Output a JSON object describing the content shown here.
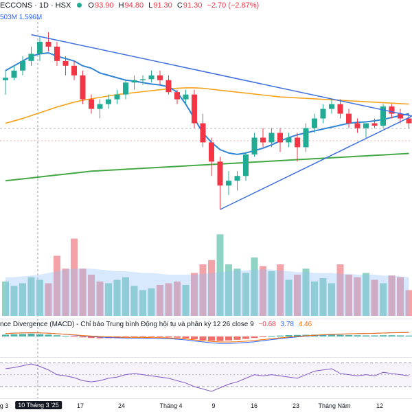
{
  "header": {
    "symbol": "ECCONS · 1D · HSX",
    "open_label": "O",
    "open": "93.90",
    "high_label": "H",
    "high": "94.80",
    "low_label": "L",
    "low": "91.30",
    "close_label": "C",
    "close": "91.30",
    "change": "−2.70 (−2.87%)"
  },
  "volume_header": {
    "v1": "503M",
    "v2": "1.596M"
  },
  "macd_header": {
    "title": "nce Divergence (MACD) - Chỉ báo Trung bình Động hội tụ và phân kỳ 12 26 close 9",
    "v1": "−0.68",
    "v2": "3.78",
    "v3": "4.46"
  },
  "x_axis": {
    "labels": [
      "g 3",
      "10 Tháng 3 '25",
      "17",
      "24",
      "Tháng 4",
      "9",
      "16",
      "23",
      "Tháng Năm",
      "12"
    ],
    "highlight": "10 Tháng 3 '25"
  },
  "colors": {
    "up": "#22ab94",
    "down": "#f23645",
    "ma_blue": "#2f84d6",
    "ma_orange": "#f7a21b",
    "ma_green": "#43a843",
    "trend": "#3d6fe0",
    "vol_up": "#8fd3c4",
    "vol_down": "#f3a2a8",
    "rsi": "#7e57c2"
  },
  "chart_data": {
    "type": "candlestick",
    "ohlc": [
      [
        94,
        96,
        91,
        94.5
      ],
      [
        94.5,
        97,
        94,
        96
      ],
      [
        96,
        99,
        95,
        98
      ],
      [
        98,
        101,
        97,
        99.5
      ],
      [
        99.5,
        103,
        98,
        102
      ],
      [
        102,
        104,
        100,
        101
      ],
      [
        101,
        102,
        97,
        98
      ],
      [
        98,
        99,
        95,
        97
      ],
      [
        97,
        98,
        94,
        95
      ],
      [
        95,
        96,
        89,
        90
      ],
      [
        90,
        91,
        87,
        88
      ],
      [
        88,
        90,
        86,
        89
      ],
      [
        89,
        91,
        88,
        90
      ],
      [
        90,
        92,
        89,
        91
      ],
      [
        91,
        94,
        90,
        93.5
      ],
      [
        93.5,
        95,
        92,
        94
      ],
      [
        94,
        95,
        93,
        94.2
      ],
      [
        94.2,
        96,
        93.5,
        95
      ],
      [
        95,
        96,
        93,
        94
      ],
      [
        94,
        95,
        91,
        91.5
      ],
      [
        91.5,
        92,
        89,
        90
      ],
      [
        90,
        92,
        89,
        91
      ],
      [
        91,
        92,
        84,
        85
      ],
      [
        85,
        87,
        80,
        81
      ],
      [
        81,
        82,
        74,
        77
      ],
      [
        77,
        78,
        67,
        72
      ],
      [
        72,
        75,
        70,
        73
      ],
      [
        73,
        75,
        71,
        74
      ],
      [
        74,
        79,
        73,
        78.5
      ],
      [
        78.5,
        83,
        78,
        82
      ],
      [
        82,
        84,
        80,
        81
      ],
      [
        81,
        84,
        80,
        83
      ],
      [
        83,
        84,
        79,
        81
      ],
      [
        81,
        83,
        80,
        82
      ],
      [
        82,
        83,
        77,
        80
      ],
      [
        80,
        85,
        79,
        84
      ],
      [
        84,
        87,
        83,
        86
      ],
      [
        86,
        89,
        85,
        88
      ],
      [
        88,
        90,
        87,
        89
      ],
      [
        89,
        90,
        86,
        87
      ],
      [
        87,
        88,
        84,
        85
      ],
      [
        85,
        86,
        83,
        84
      ],
      [
        84,
        85,
        82,
        85
      ],
      [
        85,
        86,
        84,
        84.5
      ],
      [
        84.5,
        89,
        84,
        88.5
      ],
      [
        88.5,
        89,
        86,
        87
      ],
      [
        87,
        88,
        85,
        86
      ],
      [
        86,
        87,
        84,
        85
      ]
    ],
    "volume_up_flags": [
      1,
      1,
      1,
      1,
      1,
      0,
      0,
      0,
      0,
      0,
      0,
      0,
      1,
      1,
      1,
      1,
      1,
      1,
      0,
      0,
      0,
      1,
      0,
      0,
      0,
      1,
      1,
      1,
      1,
      1,
      0,
      1,
      0,
      1,
      0,
      1,
      1,
      1,
      1,
      0,
      0,
      0,
      1,
      0,
      1,
      0,
      0,
      0
    ],
    "volume": [
      40,
      35,
      38,
      45,
      42,
      38,
      70,
      55,
      90,
      55,
      48,
      40,
      38,
      42,
      45,
      35,
      30,
      32,
      36,
      38,
      40,
      36,
      50,
      60,
      65,
      95,
      60,
      55,
      50,
      68,
      58,
      52,
      60,
      42,
      48,
      55,
      40,
      44,
      38,
      60,
      48,
      45,
      50,
      42,
      38,
      47,
      45,
      30
    ],
    "volume_ma": [
      45,
      45,
      46,
      47,
      48,
      50,
      52,
      54,
      55,
      55,
      55,
      54,
      53,
      52,
      52,
      51,
      50,
      50,
      49,
      48,
      48,
      48,
      48,
      49,
      50,
      51,
      52,
      53,
      53,
      54,
      54,
      54,
      53,
      52,
      51,
      51,
      50,
      50,
      50,
      49,
      49,
      48,
      48,
      48,
      47,
      47,
      46,
      45
    ],
    "ma_short": [
      96,
      97,
      98,
      99,
      99.5,
      99.7,
      99,
      98.5,
      98,
      97,
      96.5,
      95.5,
      95,
      94.5,
      94,
      93.8,
      93.5,
      93.2,
      93,
      92.6,
      91.5,
      89,
      86,
      83,
      81,
      79.5,
      78.8,
      78.5,
      78.8,
      79.3,
      79.8,
      80.5,
      81.3,
      82,
      82.6,
      83,
      83.4,
      83.8,
      84.2,
      84.6,
      85,
      85.2,
      85.3,
      85.5,
      85.8,
      86.2,
      86.6,
      87
    ],
    "ma_long": [
      85,
      85.5,
      86,
      86.6,
      87.2,
      87.8,
      88.4,
      88.9,
      89.4,
      89.8,
      90.1,
      90.4,
      90.7,
      91,
      91.2,
      91.4,
      91.6,
      91.8,
      92,
      92.2,
      92.3,
      92.4,
      92.4,
      92.3,
      92.1,
      91.9,
      91.7,
      91.5,
      91.3,
      91.1,
      90.9,
      90.7,
      90.5,
      90.4,
      90.3,
      90.2,
      90.1,
      90,
      89.9,
      89.8,
      89.7,
      89.6,
      89.5,
      89.4,
      89.3,
      89.2,
      89.1,
      89
    ],
    "ma_xlong": [
      73,
      73.2,
      73.4,
      73.6,
      73.8,
      74,
      74.2,
      74.4,
      74.6,
      74.8,
      75,
      75.1,
      75.2,
      75.3,
      75.4,
      75.5,
      75.6,
      75.7,
      75.8,
      75.9,
      76,
      76.1,
      76.2,
      76.3,
      76.4,
      76.5,
      76.6,
      76.7,
      76.8,
      76.9,
      77,
      77.1,
      77.2,
      77.3,
      77.4,
      77.5,
      77.6,
      77.7,
      77.8,
      77.9,
      78,
      78.1,
      78.2,
      78.3,
      78.4,
      78.5,
      78.6,
      78.7
    ],
    "macd_hist": [
      1.2,
      1.4,
      1.6,
      1.8,
      1.5,
      1.2,
      0.8,
      0.4,
      -0.2,
      -0.6,
      -1,
      -1.2,
      -1.1,
      -1,
      -0.8,
      -0.6,
      -0.5,
      -0.4,
      -0.5,
      -0.6,
      -0.8,
      -1.2,
      -1.8,
      -2.4,
      -2.8,
      -3,
      -2.6,
      -2.2,
      -1.6,
      -1,
      -0.4,
      0.2,
      0.6,
      0.9,
      1,
      1.1,
      1.2,
      1.2,
      1.1,
      1,
      0.9,
      0.8,
      0.7,
      0.7,
      0.8,
      0.8,
      0.7,
      0.6
    ],
    "macd_line": [
      2,
      2.2,
      2.4,
      2.5,
      2.4,
      2.2,
      1.8,
      1.4,
      0.9,
      0.4,
      0,
      -0.4,
      -0.7,
      -0.9,
      -1,
      -1.1,
      -1.1,
      -1.2,
      -1.3,
      -1.5,
      -1.8,
      -2.3,
      -3,
      -3.6,
      -4.2,
      -4.6,
      -4.6,
      -4.4,
      -4,
      -3.5,
      -2.8,
      -2.1,
      -1.4,
      -0.8,
      -0.3,
      0.2,
      0.6,
      1,
      1.3,
      1.5,
      1.7,
      1.9,
      2,
      2.1,
      2.3,
      2.5,
      2.6,
      2.7
    ],
    "rsi": [
      60,
      62,
      65,
      68,
      64,
      58,
      50,
      48,
      45,
      40,
      38,
      40,
      44,
      46,
      50,
      52,
      50,
      48,
      46,
      44,
      40,
      36,
      30,
      26,
      22,
      28,
      34,
      38,
      44,
      50,
      48,
      50,
      48,
      46,
      44,
      50,
      56,
      58,
      60,
      52,
      50,
      48,
      50,
      48,
      54,
      52,
      50,
      48
    ]
  }
}
